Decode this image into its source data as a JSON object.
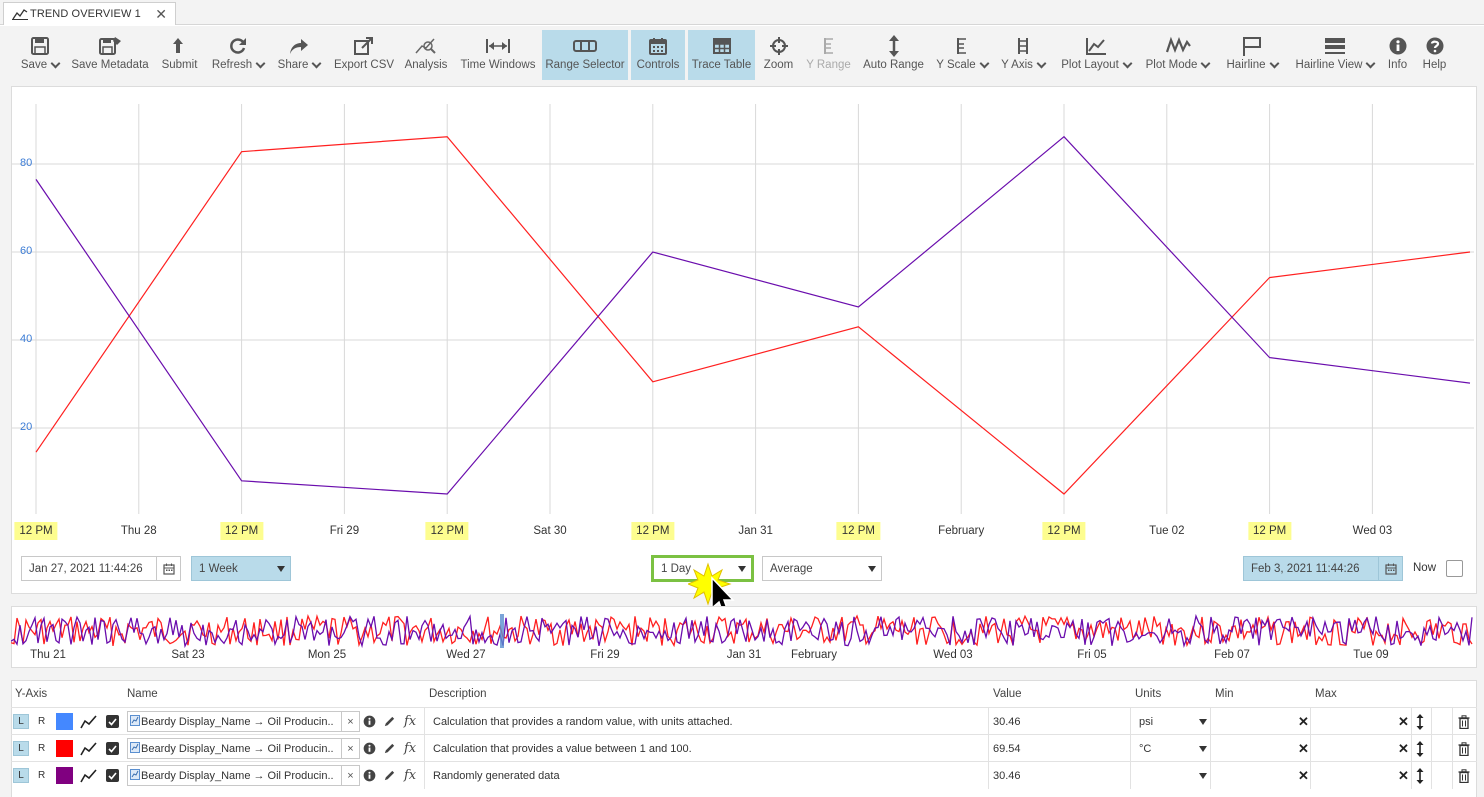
{
  "tab": {
    "title": "TREND OVERVIEW 1",
    "close": "✕"
  },
  "toolbar": {
    "items": [
      {
        "label": "Save",
        "icon": "save-icon",
        "dropdown": true
      },
      {
        "label": "Save Metadata",
        "icon": "save-metadata-icon"
      },
      {
        "label": "Submit",
        "icon": "submit-icon"
      },
      {
        "label": "Refresh",
        "icon": "refresh-icon",
        "dropdown": true
      },
      {
        "label": "Share",
        "icon": "share-icon",
        "dropdown": true
      },
      {
        "label": "Export CSV",
        "icon": "export-icon"
      },
      {
        "label": "Analysis",
        "icon": "analysis-icon"
      },
      {
        "label": "Time Windows",
        "icon": "time-windows-icon"
      },
      {
        "label": "Range Selector",
        "icon": "range-selector-icon",
        "active": true
      },
      {
        "label": "Controls",
        "icon": "calendar-icon",
        "active": true
      },
      {
        "label": "Trace Table",
        "icon": "table-icon",
        "active": true
      },
      {
        "label": "Zoom",
        "icon": "crosshair-icon"
      },
      {
        "label": "Y Range",
        "icon": "y-range-icon",
        "disabled": true
      },
      {
        "label": "Auto Range",
        "icon": "auto-range-icon"
      },
      {
        "label": "Y Scale",
        "icon": "y-scale-icon",
        "dropdown": true
      },
      {
        "label": "Y Axis",
        "icon": "y-axis-icon",
        "dropdown": true
      },
      {
        "label": "Plot Layout",
        "icon": "plot-layout-icon",
        "dropdown": true
      },
      {
        "label": "Plot Mode",
        "icon": "plot-mode-icon",
        "dropdown": true
      },
      {
        "label": "Hairline",
        "icon": "flag-icon",
        "dropdown": true
      },
      {
        "label": "Hairline View",
        "icon": "hairline-view-icon",
        "dropdown": true
      },
      {
        "label": "Info",
        "icon": "info-icon"
      },
      {
        "label": "Help",
        "icon": "help-icon"
      }
    ]
  },
  "chart_data": {
    "type": "line",
    "y_ticks": [
      "20",
      "40",
      "60",
      "80"
    ],
    "ylim": [
      0,
      95
    ],
    "x_ticks": [
      {
        "label": "12 PM",
        "highlight": true
      },
      {
        "label": "Thu 28",
        "highlight": false
      },
      {
        "label": "12 PM",
        "highlight": true
      },
      {
        "label": "Fri 29",
        "highlight": false
      },
      {
        "label": "12 PM",
        "highlight": true
      },
      {
        "label": "Sat 30",
        "highlight": false
      },
      {
        "label": "12 PM",
        "highlight": true
      },
      {
        "label": "Jan 31",
        "highlight": false
      },
      {
        "label": "12 PM",
        "highlight": true
      },
      {
        "label": "February",
        "highlight": false
      },
      {
        "label": "12 PM",
        "highlight": true
      },
      {
        "label": "Tue 02",
        "highlight": false
      },
      {
        "label": "12 PM",
        "highlight": true
      },
      {
        "label": "Wed 03",
        "highlight": false
      }
    ],
    "x_points": [
      0,
      1,
      2,
      3,
      4,
      5,
      6,
      7
    ],
    "series": [
      {
        "color": "#ff2020",
        "values": [
          14.5,
          82.8,
          86.2,
          30.5,
          43,
          5,
          54.2,
          60
        ]
      },
      {
        "color": "#6a0dad",
        "values": [
          76.5,
          8,
          5,
          60,
          47.5,
          86.2,
          36,
          30.2
        ]
      }
    ],
    "grid": true
  },
  "controls": {
    "start": "Jan 27, 2021 11:44:26",
    "range": "1 Week",
    "resolution": "1 Day",
    "aggregate": "Average",
    "end": "Feb 3, 2021 11:44:26",
    "now_label": "Now"
  },
  "overview": {
    "ticks": [
      "Thu 21",
      "Sat 23",
      "Mon 25",
      "Wed 27",
      "Fri 29",
      "Jan 31",
      "February",
      "Wed 03",
      "Fri 05",
      "Feb 07",
      "Tue 09"
    ]
  },
  "table": {
    "headers": {
      "yaxis": "Y-Axis",
      "name": "Name",
      "description": "Description",
      "value": "Value",
      "units": "Units",
      "min": "Min",
      "max": "Max"
    },
    "rows": [
      {
        "l": "L",
        "r": "R",
        "color": "#4488ff",
        "name": "Beardy Display_Name → Oil Producin...",
        "description": "Calculation that provides a random value, with units attached.",
        "value": "30.46",
        "units": "psi"
      },
      {
        "l": "L",
        "r": "R",
        "color": "#ff0000",
        "name": "Beardy Display_Name → Oil Producin...",
        "description": "Calculation that provides a value between 1 and 100.",
        "value": "69.54",
        "units": "°C"
      },
      {
        "l": "L",
        "r": "R",
        "color": "#800080",
        "name": "Beardy Display_Name → Oil Producin...",
        "description": "Randomly generated data",
        "value": "30.46",
        "units": ""
      }
    ]
  }
}
